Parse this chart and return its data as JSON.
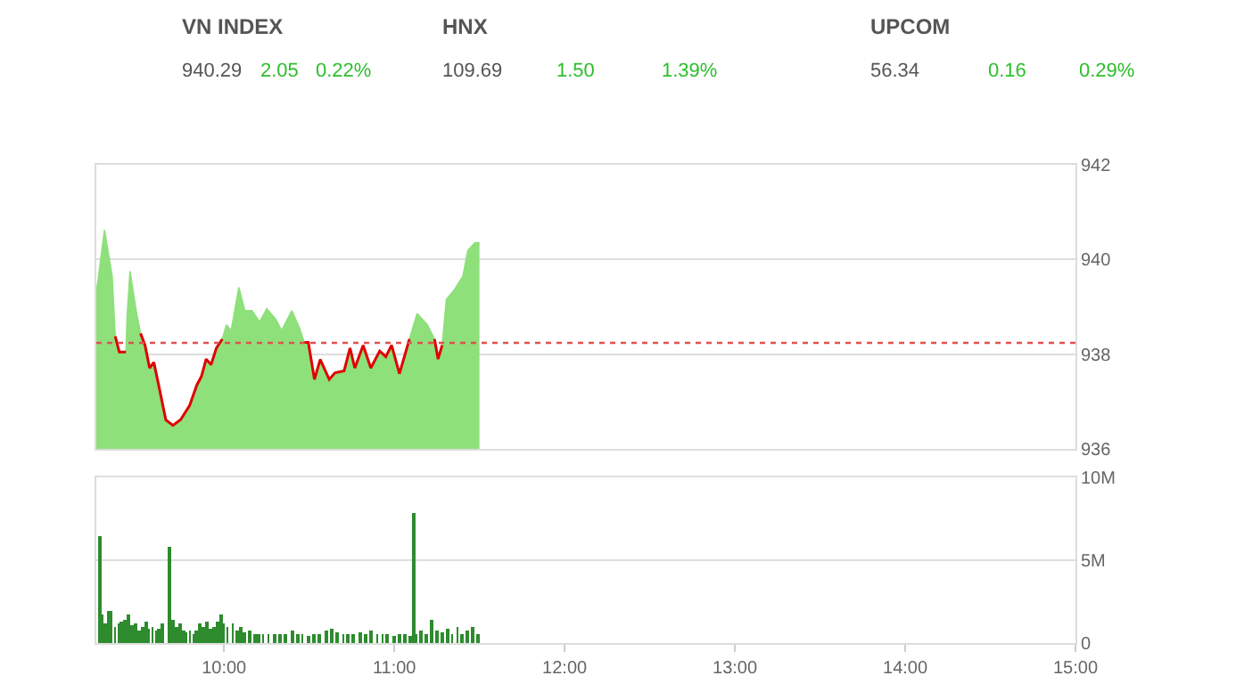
{
  "chart_data": [
    {
      "type": "other",
      "title": "VN INDEX",
      "annotations": [
        "940.29",
        "2.05",
        "0.22%"
      ]
    },
    {
      "type": "other",
      "title": "HNX",
      "annotations": [
        "109.69",
        "1.50",
        "1.39%"
      ]
    },
    {
      "type": "other",
      "title": "UPCOM",
      "annotations": [
        "56.34",
        "0.16",
        "0.29%"
      ]
    },
    {
      "type": "area",
      "x": [
        9.25,
        9.298,
        9.343,
        9.361,
        9.385,
        9.424,
        9.431,
        9.448,
        9.484,
        9.51,
        9.536,
        9.563,
        9.588,
        9.616,
        9.658,
        9.7,
        9.745,
        9.798,
        9.84,
        9.867,
        9.895,
        9.924,
        9.955,
        9.99,
        10.014,
        10.042,
        10.087,
        10.122,
        10.164,
        10.209,
        10.251,
        10.304,
        10.338,
        10.398,
        10.443,
        10.471,
        10.495,
        10.531,
        10.565,
        10.618,
        10.652,
        10.705,
        10.74,
        10.768,
        10.817,
        10.862,
        10.914,
        10.95,
        10.984,
        11.03,
        11.089,
        11.134,
        11.194,
        11.236,
        11.257,
        11.281,
        11.306,
        11.351,
        11.403,
        11.432,
        11.473,
        11.5
      ],
      "series": [
        {
          "type": "area",
          "color": "#8ee07a",
          "values": [
            939.28,
            940.62,
            939.65,
            938.38,
            938.05,
            938.05,
            938.8,
            939.75,
            938.92,
            938.44,
            938.19,
            937.71,
            937.83,
            937.35,
            936.62,
            936.5,
            936.62,
            936.92,
            937.35,
            937.53,
            937.9,
            937.78,
            938.13,
            938.32,
            938.62,
            938.5,
            939.41,
            938.92,
            938.92,
            938.68,
            938.96,
            938.74,
            938.5,
            938.92,
            938.56,
            938.25,
            938.25,
            937.47,
            937.89,
            937.47,
            937.61,
            937.65,
            938.13,
            937.71,
            938.19,
            937.71,
            938.07,
            937.95,
            938.19,
            937.59,
            938.32,
            938.86,
            938.62,
            938.32,
            937.9,
            938.19,
            939.16,
            939.35,
            939.65,
            940.19,
            940.35,
            940.35
          ]
        },
        {
          "type": "line",
          "color": "#e00000",
          "values": [
            null,
            null,
            null,
            938.38,
            938.05,
            938.05,
            null,
            null,
            null,
            938.44,
            938.19,
            937.71,
            937.83,
            937.35,
            936.62,
            936.5,
            936.62,
            936.92,
            937.35,
            937.53,
            937.9,
            937.78,
            938.13,
            938.32,
            null,
            null,
            null,
            null,
            null,
            null,
            null,
            null,
            null,
            null,
            null,
            938.25,
            938.25,
            937.47,
            937.89,
            937.47,
            937.61,
            937.65,
            938.13,
            937.71,
            938.19,
            937.71,
            938.07,
            937.95,
            938.19,
            937.59,
            938.32,
            null,
            null,
            938.32,
            937.9,
            938.19,
            null,
            null,
            null,
            null,
            null,
            null
          ]
        }
      ],
      "xlim": [
        9.25,
        15
      ],
      "xticks": [
        {
          "value": 10,
          "label": null
        },
        {
          "value": 11,
          "label": null
        },
        {
          "value": 12,
          "label": null
        },
        {
          "value": 13,
          "label": null
        },
        {
          "value": 14,
          "label": null
        },
        {
          "value": 15,
          "label": null
        }
      ],
      "ylim": [
        936,
        942
      ],
      "yticks": [
        936,
        938,
        940,
        942
      ],
      "ref_lines": [
        {
          "axis": "y",
          "value": 938.24,
          "color": "#e05050",
          "line_style": "dotted"
        }
      ],
      "grid": "y",
      "tick_labels": "y"
    },
    {
      "type": "bar",
      "color": "#2e8b2e",
      "x": [
        9.267,
        9.28,
        9.3,
        9.32,
        9.34,
        9.36,
        9.38,
        9.4,
        9.42,
        9.44,
        9.46,
        9.48,
        9.5,
        9.52,
        9.54,
        9.56,
        9.58,
        9.6,
        9.62,
        9.64,
        9.679,
        9.7,
        9.72,
        9.74,
        9.76,
        9.78,
        9.8,
        9.82,
        9.84,
        9.86,
        9.88,
        9.9,
        9.92,
        9.94,
        9.96,
        9.98,
        10.0,
        10.02,
        10.05,
        10.08,
        10.1,
        10.12,
        10.15,
        10.18,
        10.2,
        10.23,
        10.26,
        10.3,
        10.33,
        10.36,
        10.4,
        10.43,
        10.46,
        10.5,
        10.53,
        10.56,
        10.6,
        10.63,
        10.66,
        10.7,
        10.73,
        10.76,
        10.8,
        10.83,
        10.86,
        10.9,
        10.93,
        10.96,
        11.0,
        11.03,
        11.06,
        11.09,
        11.113,
        11.13,
        11.16,
        11.19,
        11.22,
        11.25,
        11.28,
        11.31,
        11.34,
        11.37,
        11.4,
        11.43,
        11.46,
        11.49
      ],
      "values": [
        6.5,
        1.7,
        1.2,
        1.9,
        1.9,
        1.0,
        1.2,
        1.3,
        1.4,
        1.7,
        1.1,
        1.2,
        0.8,
        1.0,
        1.3,
        0.9,
        1.0,
        0.8,
        0.9,
        1.2,
        5.8,
        1.4,
        1.0,
        1.2,
        0.8,
        0.7,
        0.8,
        0.6,
        0.8,
        1.2,
        1.0,
        1.3,
        0.9,
        1.0,
        1.3,
        1.7,
        1.2,
        1.0,
        1.2,
        0.8,
        1.0,
        0.7,
        0.8,
        0.6,
        0.5,
        0.5,
        0.5,
        0.5,
        0.6,
        0.5,
        0.8,
        0.6,
        0.5,
        0.4,
        0.5,
        0.6,
        0.8,
        0.9,
        0.7,
        0.6,
        0.6,
        0.5,
        0.7,
        0.6,
        0.8,
        0.5,
        0.5,
        0.6,
        0.4,
        0.5,
        0.5,
        0.4,
        7.9,
        0.5,
        0.8,
        0.6,
        1.4,
        0.8,
        0.7,
        0.9,
        0.6,
        1.0,
        0.6,
        0.8,
        1.0,
        0.6
      ],
      "xlim": [
        9.25,
        15
      ],
      "xticks": [
        {
          "value": 10,
          "label": "10:00"
        },
        {
          "value": 11,
          "label": "11:00"
        },
        {
          "value": 12,
          "label": "12:00"
        },
        {
          "value": 13,
          "label": "13:00"
        },
        {
          "value": 14,
          "label": "14:00"
        },
        {
          "value": 15,
          "label": "15:00"
        }
      ],
      "ylim": [
        0,
        10
      ],
      "yticks": [
        0,
        {
          "value": 5,
          "label": "5M"
        },
        {
          "value": 10,
          "label": "10M"
        }
      ],
      "grid": "y"
    }
  ]
}
